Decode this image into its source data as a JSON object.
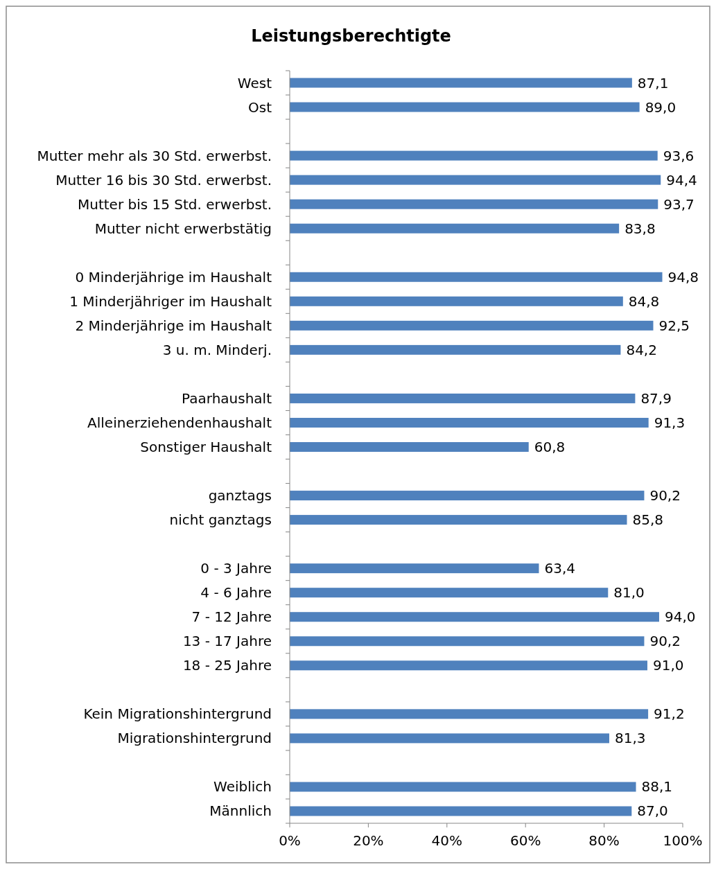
{
  "chart_data": {
    "type": "bar",
    "orientation": "horizontal",
    "title": "Leistungsberechtigte",
    "categories": [
      "West",
      "Ost",
      null,
      "Mutter mehr als 30 Std. erwerbst.",
      "Mutter 16 bis 30 Std. erwerbst.",
      "Mutter bis 15 Std. erwerbst.",
      "Mutter nicht erwerbstätig",
      null,
      "0 Minderjährige im Haushalt",
      "1 Minderjähriger im Haushalt",
      "2 Minderjährige im Haushalt",
      "3 u. m. Minderj.",
      null,
      "Paarhaushalt",
      "Alleinerziehendenhaushalt",
      "Sonstiger Haushalt",
      null,
      "ganztags",
      "nicht ganztags",
      null,
      "0 - 3 Jahre",
      "4 - 6 Jahre",
      "7 - 12 Jahre",
      "13 - 17 Jahre",
      "18 - 25 Jahre",
      null,
      "Kein Migrationshintergrund",
      "Migrationshintergrund",
      null,
      "Weiblich",
      "Männlich"
    ],
    "values": [
      87.1,
      89.0,
      null,
      93.6,
      94.4,
      93.7,
      83.8,
      null,
      94.8,
      84.8,
      92.5,
      84.2,
      null,
      87.9,
      91.3,
      60.8,
      null,
      90.2,
      85.8,
      null,
      63.4,
      81.0,
      94.0,
      90.2,
      91.0,
      null,
      91.2,
      81.3,
      null,
      88.1,
      87.0
    ],
    "value_labels": [
      "87,1",
      "89,0",
      null,
      "93,6",
      "94,4",
      "93,7",
      "83,8",
      null,
      "94,8",
      "84,8",
      "92,5",
      "84,2",
      null,
      "87,9",
      "91,3",
      "60,8",
      null,
      "90,2",
      "85,8",
      null,
      "63,4",
      "81,0",
      "94,0",
      "90,2",
      "91,0",
      null,
      "91,2",
      "81,3",
      null,
      "88,1",
      "87,0"
    ],
    "color": "#4f81bd",
    "xlim": [
      0,
      100
    ],
    "xticks": [
      {
        "value": 0,
        "label": "0%"
      },
      {
        "value": 20,
        "label": "20%"
      },
      {
        "value": 40,
        "label": "40%"
      },
      {
        "value": 60,
        "label": "60%"
      },
      {
        "value": 80,
        "label": "80%"
      },
      {
        "value": 100,
        "label": "100%"
      }
    ],
    "grid": false
  }
}
